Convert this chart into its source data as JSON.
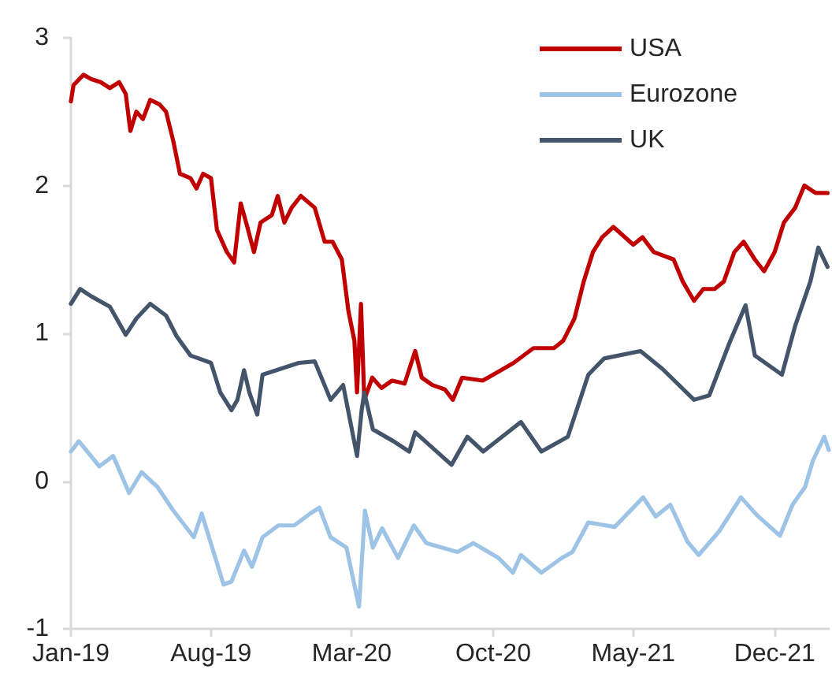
{
  "chart_data": {
    "type": "line",
    "xlim": [
      "2019-01-01",
      "2022-02-21"
    ],
    "xticks": [
      {
        "value": "2019-01-01",
        "label": "Jan-19"
      },
      {
        "value": "2019-08-01",
        "label": "Aug-19"
      },
      {
        "value": "2020-03-01",
        "label": "Mar-20"
      },
      {
        "value": "2020-10-01",
        "label": "Oct-20"
      },
      {
        "value": "2021-05-01",
        "label": "May-21"
      },
      {
        "value": "2021-12-01",
        "label": "Dec-21"
      }
    ],
    "ylim": [
      -1,
      3
    ],
    "yticks": [
      -1,
      0,
      1,
      2,
      3
    ],
    "grid": false,
    "legend": "top right",
    "marker": "none",
    "line_style": "solid",
    "series": [
      {
        "name": "USA",
        "color": "#c00000",
        "x": [
          "2019-01-01",
          "2019-01-05",
          "2019-01-20",
          "2019-02-01",
          "2019-02-15",
          "2019-03-01",
          "2019-03-15",
          "2019-03-25",
          "2019-04-01",
          "2019-04-10",
          "2019-04-20",
          "2019-05-01",
          "2019-05-15",
          "2019-05-25",
          "2019-06-05",
          "2019-06-15",
          "2019-07-01",
          "2019-07-10",
          "2019-07-20",
          "2019-08-01",
          "2019-08-10",
          "2019-08-25",
          "2019-09-05",
          "2019-09-15",
          "2019-09-25",
          "2019-10-05",
          "2019-10-15",
          "2019-11-01",
          "2019-11-10",
          "2019-11-20",
          "2019-12-01",
          "2019-12-15",
          "2020-01-05",
          "2020-01-20",
          "2020-02-01",
          "2020-02-15",
          "2020-02-25",
          "2020-03-05",
          "2020-03-09",
          "2020-03-15",
          "2020-03-20",
          "2020-04-01",
          "2020-04-15",
          "2020-05-01",
          "2020-05-20",
          "2020-06-05",
          "2020-06-15",
          "2020-07-01",
          "2020-07-20",
          "2020-08-01",
          "2020-08-15",
          "2020-09-15",
          "2020-10-01",
          "2020-11-01",
          "2020-12-01",
          "2021-01-01",
          "2021-01-15",
          "2021-02-01",
          "2021-02-15",
          "2021-03-01",
          "2021-03-15",
          "2021-04-01",
          "2021-05-01",
          "2021-05-15",
          "2021-06-01",
          "2021-07-01",
          "2021-07-15",
          "2021-08-01",
          "2021-08-15",
          "2021-09-01",
          "2021-09-15",
          "2021-10-01",
          "2021-10-15",
          "2021-11-01",
          "2021-11-15",
          "2021-12-01",
          "2021-12-15",
          "2022-01-01",
          "2022-01-15",
          "2022-02-01",
          "2022-02-19"
        ],
        "values": [
          2.57,
          2.68,
          2.75,
          2.72,
          2.7,
          2.66,
          2.7,
          2.62,
          2.37,
          2.5,
          2.45,
          2.58,
          2.55,
          2.5,
          2.3,
          2.08,
          2.05,
          1.98,
          2.08,
          2.05,
          1.7,
          1.55,
          1.48,
          1.88,
          1.72,
          1.55,
          1.75,
          1.8,
          1.93,
          1.75,
          1.85,
          1.93,
          1.85,
          1.62,
          1.62,
          1.5,
          1.15,
          0.95,
          0.6,
          1.2,
          0.55,
          0.7,
          0.63,
          0.68,
          0.66,
          0.88,
          0.7,
          0.65,
          0.62,
          0.55,
          0.7,
          0.68,
          0.72,
          0.8,
          0.9,
          0.9,
          0.95,
          1.1,
          1.35,
          1.55,
          1.65,
          1.72,
          1.6,
          1.65,
          1.55,
          1.5,
          1.35,
          1.22,
          1.3,
          1.3,
          1.35,
          1.55,
          1.62,
          1.5,
          1.42,
          1.55,
          1.75,
          1.85,
          2.0,
          1.95,
          1.95
        ]
      },
      {
        "name": "Eurozone",
        "color": "#9dc3e6",
        "x": [
          "2019-01-01",
          "2019-01-13",
          "2019-02-13",
          "2019-03-06",
          "2019-03-30",
          "2019-04-18",
          "2019-05-12",
          "2019-06-05",
          "2019-07-06",
          "2019-07-18",
          "2019-08-20",
          "2019-09-01",
          "2019-09-20",
          "2019-10-02",
          "2019-10-18",
          "2019-11-11",
          "2019-12-05",
          "2019-12-29",
          "2020-01-12",
          "2020-01-29",
          "2020-02-22",
          "2020-03-12",
          "2020-03-21",
          "2020-04-02",
          "2020-04-16",
          "2020-05-10",
          "2020-06-03",
          "2020-06-22",
          "2020-08-08",
          "2020-09-01",
          "2020-10-09",
          "2020-10-31",
          "2020-11-12",
          "2020-12-13",
          "2021-01-13",
          "2021-01-29",
          "2021-02-22",
          "2021-04-03",
          "2021-05-16",
          "2021-06-04",
          "2021-06-26",
          "2021-07-22",
          "2021-08-08",
          "2021-09-08",
          "2021-10-11",
          "2021-11-04",
          "2021-12-09",
          "2021-12-28",
          "2022-01-16",
          "2022-01-28",
          "2022-02-14",
          "2022-02-21"
        ],
        "values": [
          0.2,
          0.27,
          0.1,
          0.17,
          -0.08,
          0.06,
          -0.04,
          -0.2,
          -0.38,
          -0.22,
          -0.7,
          -0.68,
          -0.47,
          -0.58,
          -0.38,
          -0.3,
          -0.3,
          -0.22,
          -0.18,
          -0.38,
          -0.45,
          -0.85,
          -0.2,
          -0.45,
          -0.32,
          -0.52,
          -0.3,
          -0.42,
          -0.48,
          -0.42,
          -0.52,
          -0.62,
          -0.5,
          -0.62,
          -0.52,
          -0.48,
          -0.28,
          -0.31,
          -0.11,
          -0.24,
          -0.16,
          -0.41,
          -0.5,
          -0.34,
          -0.11,
          -0.23,
          -0.37,
          -0.16,
          -0.04,
          0.14,
          0.3,
          0.21
        ]
      },
      {
        "name": "UK",
        "color": "#44546a",
        "x": [
          "2019-01-01",
          "2019-01-15",
          "2019-02-01",
          "2019-03-01",
          "2019-03-25",
          "2019-04-10",
          "2019-05-01",
          "2019-05-25",
          "2019-06-10",
          "2019-07-01",
          "2019-08-01",
          "2019-08-15",
          "2019-09-01",
          "2019-09-10",
          "2019-09-20",
          "2019-09-28",
          "2019-10-10",
          "2019-10-18",
          "2019-12-12",
          "2020-01-05",
          "2020-01-29",
          "2020-02-17",
          "2020-03-09",
          "2020-03-16",
          "2020-03-20",
          "2020-04-02",
          "2020-05-03",
          "2020-05-27",
          "2020-06-05",
          "2020-07-30",
          "2020-08-23",
          "2020-09-16",
          "2020-11-12",
          "2020-12-13",
          "2021-01-22",
          "2021-02-22",
          "2021-03-18",
          "2021-05-12",
          "2021-06-14",
          "2021-08-01",
          "2021-08-24",
          "2021-09-24",
          "2021-10-18",
          "2021-11-01",
          "2021-12-12",
          "2022-01-01",
          "2022-01-24",
          "2022-02-05",
          "2022-02-19"
        ],
        "values": [
          1.2,
          1.3,
          1.25,
          1.18,
          0.99,
          1.1,
          1.2,
          1.12,
          0.98,
          0.85,
          0.8,
          0.6,
          0.48,
          0.55,
          0.75,
          0.6,
          0.45,
          0.72,
          0.8,
          0.81,
          0.55,
          0.65,
          0.17,
          0.48,
          0.6,
          0.35,
          0.27,
          0.2,
          0.33,
          0.11,
          0.3,
          0.2,
          0.4,
          0.2,
          0.3,
          0.72,
          0.83,
          0.88,
          0.76,
          0.55,
          0.58,
          0.94,
          1.19,
          0.85,
          0.72,
          1.05,
          1.35,
          1.58,
          1.45
        ]
      }
    ]
  }
}
